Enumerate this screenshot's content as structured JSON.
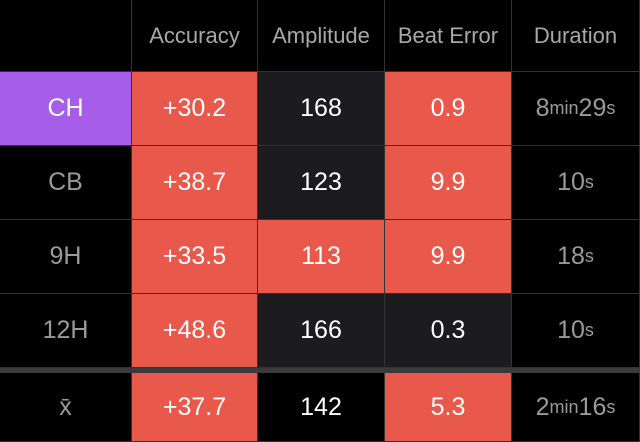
{
  "table": {
    "header": [
      "Accuracy",
      "Amplitude",
      "Beat Error",
      "Duration"
    ],
    "rows": [
      [
        "CH",
        "+30.2",
        "168",
        "0.9",
        "8min29s"
      ],
      [
        "CB",
        "+38.7",
        "123",
        "9.9",
        "10s"
      ],
      [
        "9H",
        "+33.5",
        "113",
        "9.9",
        "18s"
      ],
      [
        "12H",
        "+48.6",
        "166",
        "0.3",
        "10s"
      ],
      [
        "x̄",
        "+37.7",
        "142",
        "5.3",
        "2min16s"
      ]
    ]
  }
}
